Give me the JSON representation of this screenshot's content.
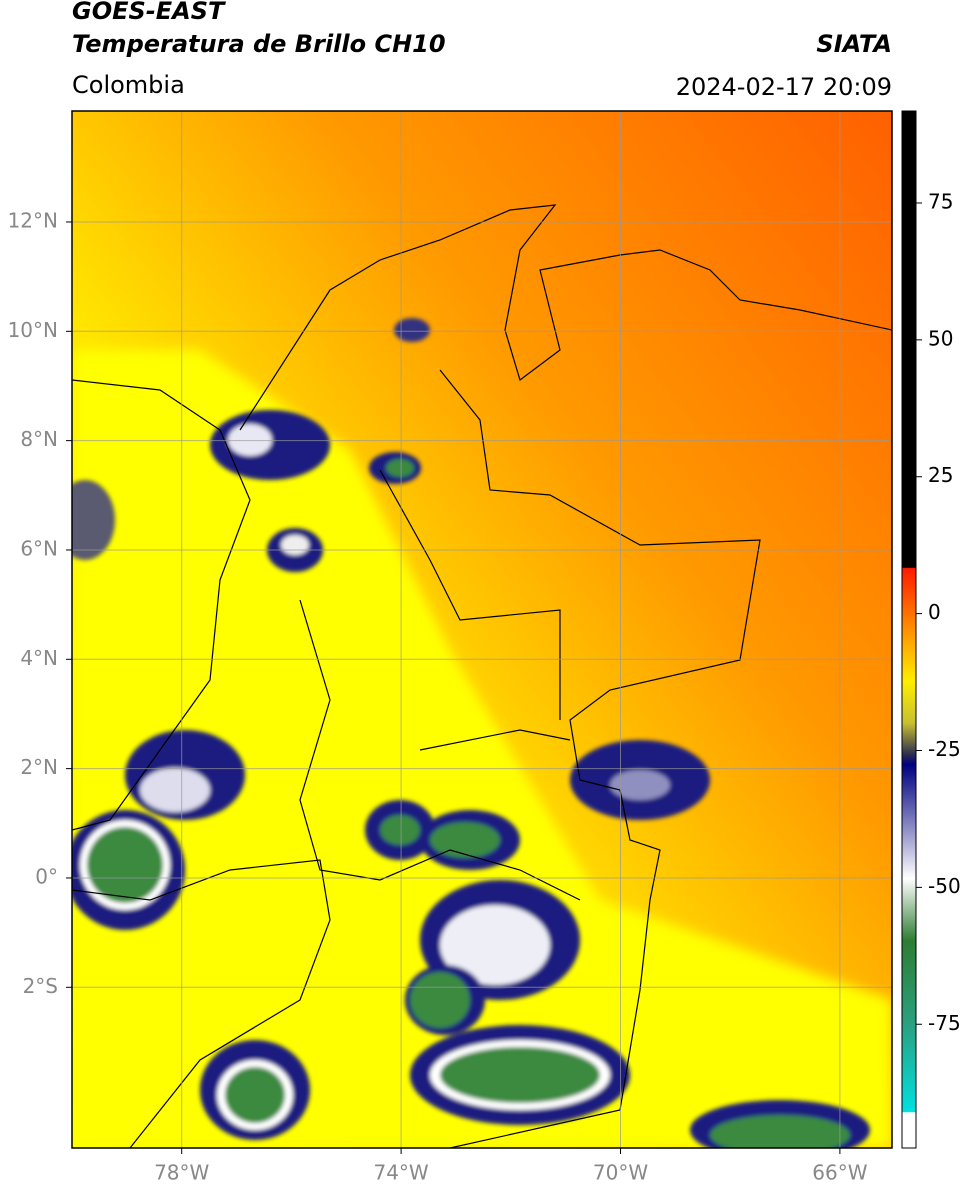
{
  "header": {
    "title": "GOES-EAST",
    "subtitle": "Temperatura de Brillo CH10",
    "source": "SIATA",
    "region": "Colombia",
    "datetime": "2024-02-17 20:09"
  },
  "map": {
    "xlim": [
      -80,
      -65.05
    ],
    "ylim": [
      -4.94,
      14.03
    ],
    "xticks": [
      {
        "value": -78,
        "label": "78°W"
      },
      {
        "value": -74,
        "label": "74°W"
      },
      {
        "value": -70,
        "label": "70°W"
      },
      {
        "value": -66,
        "label": "66°W"
      }
    ],
    "yticks": [
      {
        "value": 12,
        "label": "12°N"
      },
      {
        "value": 10,
        "label": "10°N"
      },
      {
        "value": 8,
        "label": "8°N"
      },
      {
        "value": 6,
        "label": "6°N"
      },
      {
        "value": 4,
        "label": "4°N"
      },
      {
        "value": 2,
        "label": "2°N"
      },
      {
        "value": 0,
        "label": "0°"
      },
      {
        "value": -2,
        "label": "2°S"
      }
    ]
  },
  "colorbar": {
    "lim": [
      -97.6,
      91.8
    ],
    "ticks": [
      75,
      50,
      25,
      0,
      -25,
      -50,
      -75
    ]
  }
}
